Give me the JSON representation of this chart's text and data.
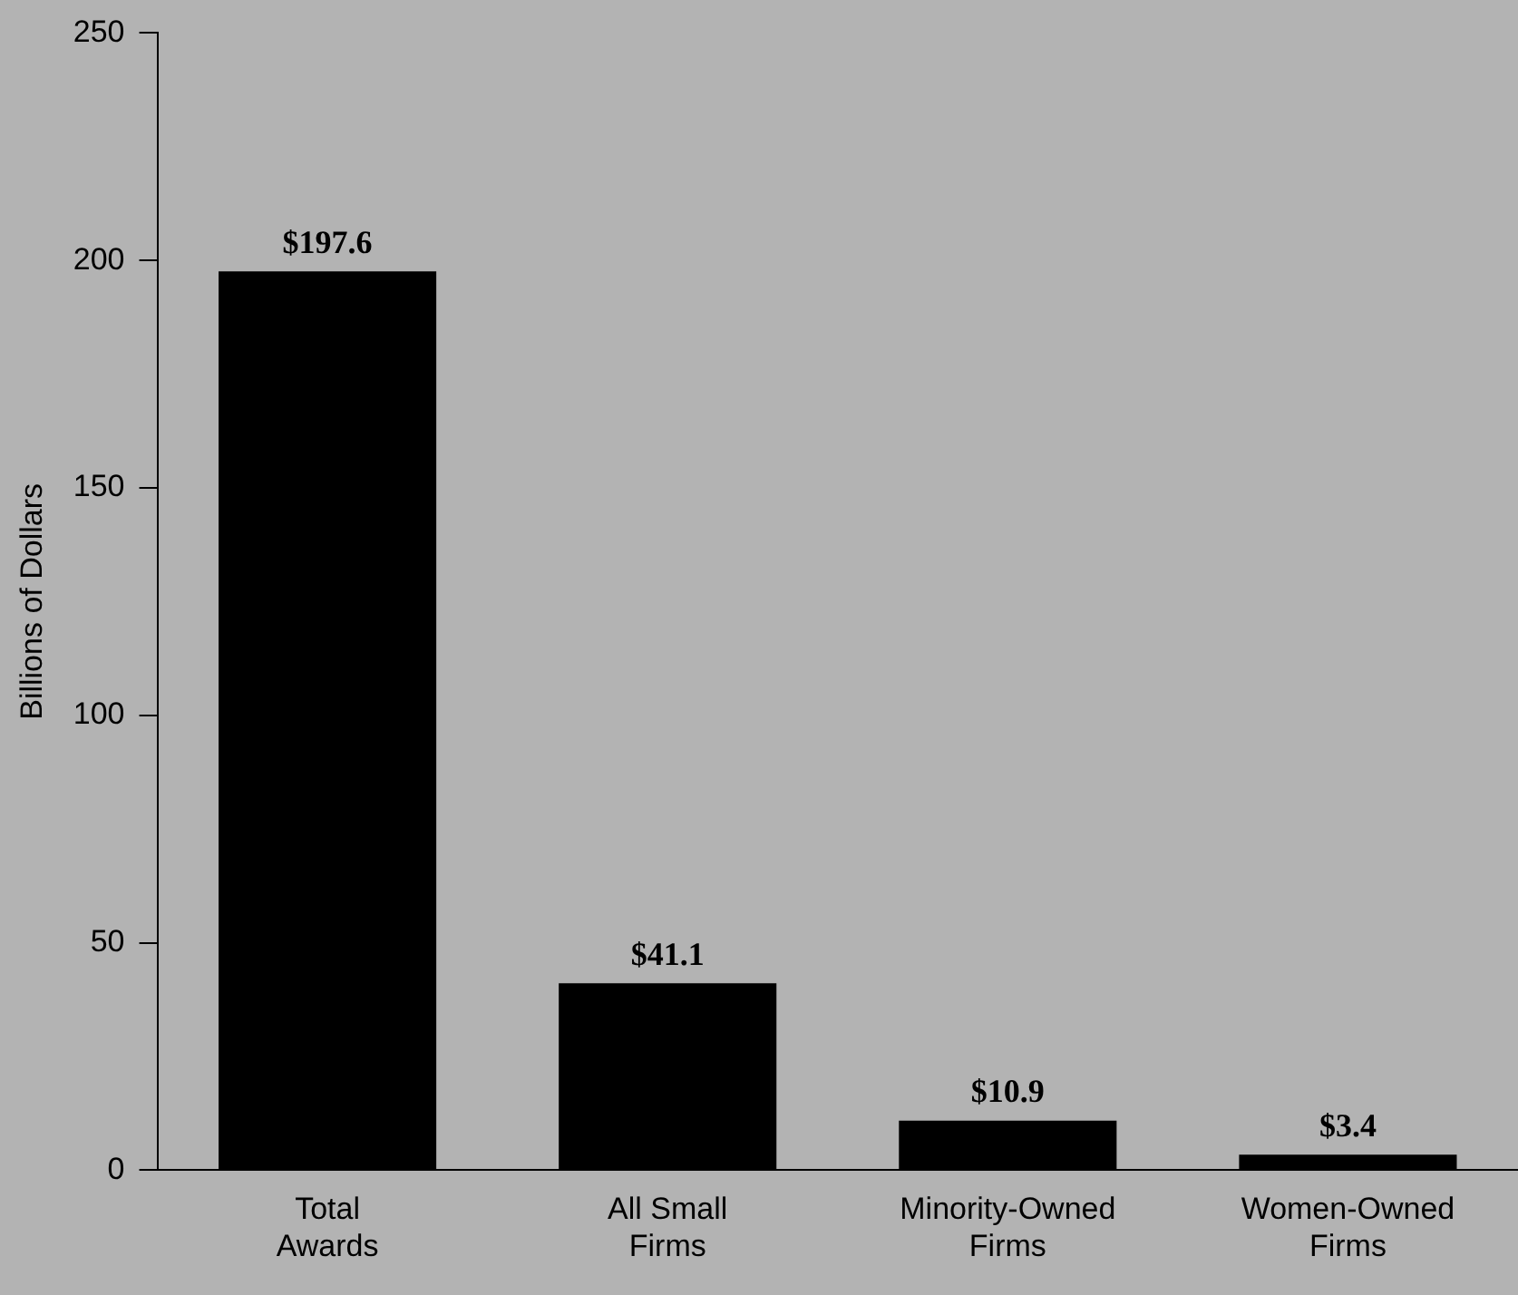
{
  "chart_data": {
    "type": "bar",
    "ylabel": "Billions of Dollars",
    "categories": [
      "Total Awards",
      "All Small Firms",
      "Minority-Owned Firms",
      "Women-Owned Firms"
    ],
    "values": [
      197.6,
      41.1,
      10.9,
      3.4
    ],
    "color": "#000000",
    "value_labels": [
      "$197.6",
      "$41.1",
      "$10.9",
      "$3.4"
    ],
    "ylim": [
      0,
      250
    ],
    "yticks": [
      0,
      50,
      100,
      150,
      200,
      250
    ],
    "grid": false,
    "legend": false
  }
}
